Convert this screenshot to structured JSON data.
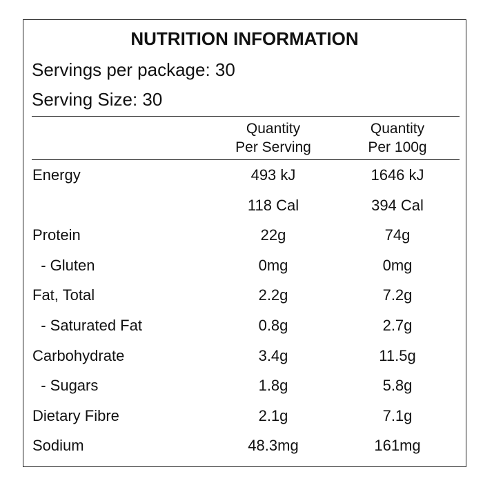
{
  "header": {
    "title": "NUTRITION INFORMATION",
    "servings": "Servings per package: 30",
    "serving_size": "Serving Size: 30"
  },
  "table": {
    "columns": [
      [
        "Quantity",
        "Per Serving"
      ],
      [
        "Quantity",
        "Per 100g"
      ]
    ],
    "rows": [
      {
        "label": "Energy",
        "cells": [
          "493 kJ",
          "1646 kJ"
        ]
      },
      {
        "cells": [
          "118 Cal",
          "394 Cal"
        ]
      },
      {
        "label": "Protein",
        "cells": [
          "22g",
          "74g"
        ]
      },
      {
        "label": "  - Gluten",
        "cells": [
          "0mg",
          "0mg"
        ]
      },
      {
        "label": "Fat, Total",
        "cells": [
          "2.2g",
          "7.2g"
        ]
      },
      {
        "label": "  - Saturated Fat",
        "cells": [
          "0.8g",
          "2.7g"
        ]
      },
      {
        "label": "Carbohydrate",
        "cells": [
          "3.4g",
          "11.5g"
        ]
      },
      {
        "label": "  - Sugars",
        "cells": [
          "1.8g",
          "5.8g"
        ]
      },
      {
        "label": "Dietary Fibre",
        "cells": [
          "2.1g",
          "7.1g"
        ]
      },
      {
        "label": "Sodium",
        "cells": [
          "48.3mg",
          "161mg"
        ]
      }
    ]
  }
}
